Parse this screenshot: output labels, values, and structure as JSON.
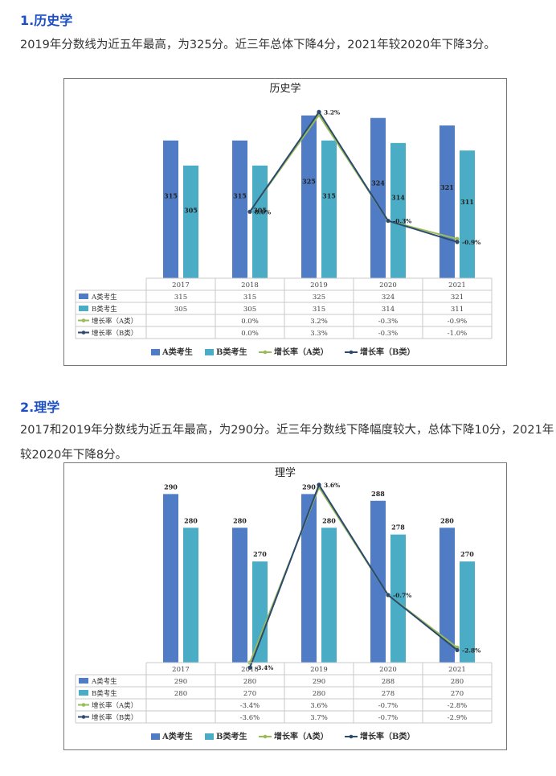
{
  "sections": [
    {
      "heading": "1.历史学",
      "paragraph": "2019年分数线为近五年最高，为325分。近三年总体下降4分，2021年较2020年下降3分。"
    },
    {
      "heading": "2.理学",
      "paragraph": "2017和2019年分数线为近五年最高，为290分。近三年分数线下降幅度较大，总体下降10分，2021年较2020年下降8分。"
    }
  ],
  "colors": {
    "bar_a": "#4f7cc4",
    "bar_b": "#4bacc6",
    "line_a": "#9bbb59",
    "line_b": "#2c4a6e",
    "heading": "#1d4fc4"
  },
  "chart_data": [
    {
      "type": "bar",
      "title": "历史学",
      "categories": [
        "2017",
        "2018",
        "2019",
        "2020",
        "2021"
      ],
      "series": [
        {
          "name": "A类考生",
          "kind": "bar",
          "values": [
            315,
            315,
            325,
            324,
            321
          ],
          "labels": [
            "315",
            "315",
            "325",
            "324",
            "321"
          ]
        },
        {
          "name": "B类考生",
          "kind": "bar",
          "values": [
            305,
            305,
            315,
            314,
            311
          ],
          "labels": [
            "305",
            "305",
            "315",
            "314",
            "311"
          ]
        },
        {
          "name": "增长率（A类）",
          "kind": "line",
          "values": [
            null,
            0.0,
            3.2,
            -0.3,
            -0.9
          ],
          "labels": [
            "",
            "0.0%",
            "3.2%",
            "-0.3%",
            "-0.9%"
          ]
        },
        {
          "name": "增长率（B类）",
          "kind": "line",
          "values": [
            null,
            0.0,
            3.3,
            -0.3,
            -1.0
          ],
          "labels": [
            "",
            "0.0%",
            "3.3%",
            "-0.3%",
            "-1.0%"
          ]
        }
      ],
      "line_point_labels": [
        "",
        "0.0%",
        "3.2%",
        "-0.3%",
        "-0.9%"
      ],
      "bar_value_labels_position": "inside",
      "bar_ylim": [
        260,
        330
      ],
      "line_ylim": [
        -2.2,
        3.6
      ],
      "legend": "bottom"
    },
    {
      "type": "bar",
      "title": "理学",
      "categories": [
        "2017",
        "2018",
        "2019",
        "2020",
        "2021"
      ],
      "series": [
        {
          "name": "A类考生",
          "kind": "bar",
          "values": [
            290,
            280,
            290,
            288,
            280
          ],
          "labels": [
            "290",
            "280",
            "290",
            "288",
            "280"
          ]
        },
        {
          "name": "B类考生",
          "kind": "bar",
          "values": [
            280,
            270,
            280,
            278,
            270
          ],
          "labels": [
            "280",
            "270",
            "280",
            "278",
            "270"
          ]
        },
        {
          "name": "增长率（A类）",
          "kind": "line",
          "values": [
            null,
            -3.4,
            3.6,
            -0.7,
            -2.8
          ],
          "labels": [
            "",
            "-3.4%",
            "3.6%",
            "-0.7%",
            "-2.8%"
          ]
        },
        {
          "name": "增长率（B类）",
          "kind": "line",
          "values": [
            null,
            -3.6,
            3.7,
            -0.7,
            -2.9
          ],
          "labels": [
            "",
            "-3.6%",
            "3.7%",
            "-0.7%",
            "-2.9%"
          ]
        }
      ],
      "line_point_labels": [
        "",
        "-3.4%",
        "3.6%",
        "-0.7%",
        "-2.8%"
      ],
      "bar_value_labels_position": "above",
      "bar_ylim": [
        240,
        292
      ],
      "line_ylim": [
        -3.4,
        3.6
      ],
      "legend": "bottom"
    }
  ]
}
